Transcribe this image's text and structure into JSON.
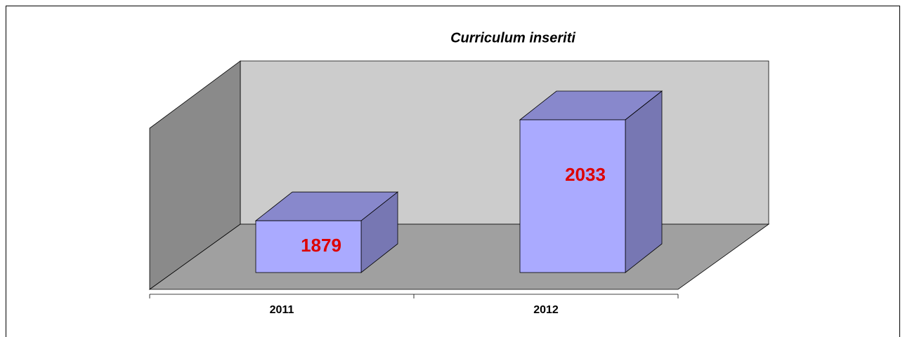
{
  "chart_data": {
    "type": "bar3d",
    "title": "Curriculum inseriti",
    "categories": [
      "2011",
      "2012"
    ],
    "values": [
      1879,
      2033
    ],
    "color": "#aaaaff",
    "ylim": [
      1800,
      2050
    ]
  }
}
